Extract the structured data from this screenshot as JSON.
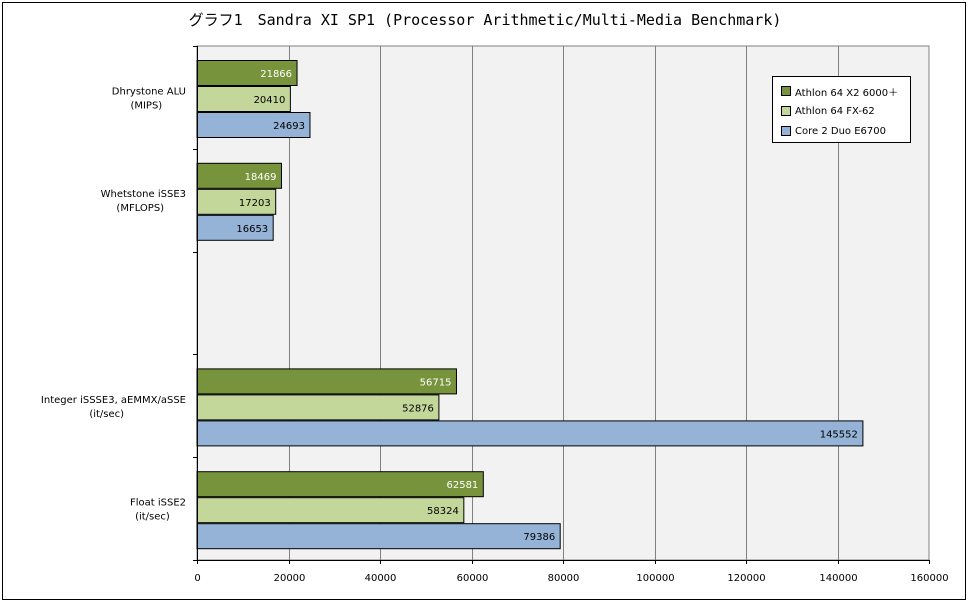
{
  "chart_data": {
    "type": "bar",
    "orientation": "horizontal",
    "title": "グラフ1　Sandra XI SP1 (Processor Arithmetic/Multi-Media Benchmark)",
    "categories": [
      {
        "line1": "Dhrystone ALU",
        "line2": "(MIPS)"
      },
      {
        "line1": "Whetstone iSSE3",
        "line2": "(MFLOPS)"
      },
      {
        "line1": "",
        "line2": ""
      },
      {
        "line1": "Integer iSSSE3, aEMMX/aSSE",
        "line2": "(it/sec)"
      },
      {
        "line1": "Float iSSE2",
        "line2": "(it/sec)"
      }
    ],
    "series": [
      {
        "name": "Athlon 64 X2 6000＋",
        "color": "#77933c",
        "label_color": "#ffffff",
        "values": [
          21866,
          18469,
          null,
          56715,
          62581
        ]
      },
      {
        "name": "Athlon 64 FX-62",
        "color": "#c4d79b",
        "label_color": "#000000",
        "values": [
          20410,
          17203,
          null,
          52876,
          58324
        ]
      },
      {
        "name": "Core 2 Duo E6700",
        "color": "#95b3d7",
        "label_color": "#000000",
        "values": [
          24693,
          16653,
          null,
          145552,
          79386
        ]
      }
    ],
    "xlim": [
      0,
      160000
    ],
    "xticks": [
      "0",
      "20000",
      "40000",
      "60000",
      "80000",
      "100000",
      "120000",
      "140000",
      "160000"
    ],
    "grid": true,
    "legend_position": "top-right"
  }
}
